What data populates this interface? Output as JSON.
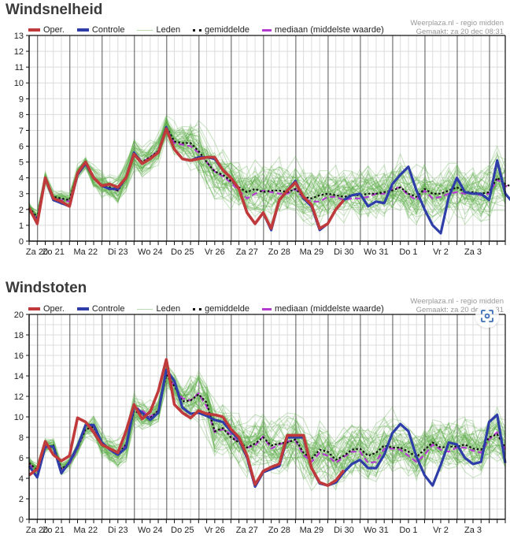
{
  "legend": {
    "oper": "Oper.",
    "controle": "Controle",
    "leden": "Leden",
    "gemiddelde": "gemiddelde",
    "mediaan": "mediaan (middelste waarde)"
  },
  "credit": {
    "source": "Weerplaza.nl - regio midden",
    "made": "Gemaakt: za 20 dec 08:31"
  },
  "colors": {
    "oper": "#c0393b",
    "controle": "#2e3da8",
    "leden": "#5fb04a",
    "gemiddelde": "#111111",
    "mediaan": "#b43ad0"
  },
  "chart_data": [
    {
      "type": "line",
      "title": "Windsnelheid",
      "xlabel": "",
      "ylabel": "",
      "ylim": [
        0,
        13
      ],
      "yticks": [
        0,
        1,
        2,
        3,
        4,
        5,
        6,
        7,
        8,
        9,
        10,
        11,
        12,
        13
      ],
      "x_step": "6 uur",
      "day_labels": [
        "Za 20",
        "Zo 21",
        "Ma 22",
        "Di 23",
        "Wo 24",
        "Do 25",
        "Vr 26",
        "Za 27",
        "Zo 28",
        "Ma 29",
        "Di 30",
        "Wo 31",
        "Do 1",
        "Vr 2",
        "Za 3"
      ],
      "grid": true,
      "legend_position": "top",
      "series": [
        {
          "name": "Oper.",
          "key": "oper",
          "values": [
            2.1,
            1.1,
            4.0,
            2.7,
            2.5,
            2.2,
            4.3,
            5.0,
            4.0,
            3.5,
            3.6,
            3.4,
            4.0,
            5.5,
            4.9,
            5.2,
            5.6,
            7.1,
            5.8,
            5.2,
            5.1,
            5.2,
            5.3,
            5.3,
            4.5,
            4.0,
            3.3,
            1.8,
            1.1,
            1.8,
            0.8,
            2.6,
            3.2,
            3.7,
            2.8,
            2.3,
            0.8,
            1.1,
            2.0,
            2.6
          ]
        },
        {
          "name": "Controle",
          "key": "controle",
          "values": [
            2.1,
            1.2,
            4.0,
            2.6,
            2.4,
            2.2,
            4.2,
            4.9,
            4.0,
            3.5,
            3.3,
            3.3,
            4.0,
            5.6,
            4.9,
            5.2,
            5.6,
            7.2,
            5.8,
            5.2,
            5.1,
            5.3,
            5.3,
            5.2,
            4.5,
            4.0,
            3.3,
            1.8,
            1.1,
            1.8,
            0.7,
            2.6,
            3.2,
            3.8,
            2.7,
            2.2,
            0.7,
            1.1,
            2.0,
            2.6,
            2.9,
            3.0,
            2.2,
            2.5,
            2.4,
            3.6,
            4.2,
            4.7,
            3.2,
            2.0,
            1.0,
            0.5,
            2.8,
            4.0,
            3.1,
            3.0,
            3.0,
            2.6,
            5.1,
            3.0,
            2.4
          ]
        },
        {
          "name": "gemiddelde",
          "key": "gemiddelde",
          "values": [
            2.1,
            1.5,
            4.0,
            2.8,
            2.7,
            2.6,
            4.3,
            4.9,
            4.0,
            3.5,
            3.4,
            3.2,
            4.0,
            5.5,
            5.0,
            5.3,
            5.7,
            7.2,
            6.3,
            6.2,
            6.2,
            5.7,
            5.0,
            4.4,
            4.2,
            3.8,
            3.4,
            3.1,
            3.3,
            3.1,
            3.2,
            3.2,
            3.1,
            3.3,
            2.8,
            2.7,
            2.9,
            3.0,
            2.9,
            2.8,
            2.9,
            2.9,
            3.0,
            3.0,
            3.1,
            3.2,
            3.4,
            3.0,
            2.8,
            3.3,
            3.0,
            3.0,
            3.2,
            3.4,
            3.1,
            3.1,
            3.0,
            3.1,
            4.0,
            3.6,
            3.4
          ]
        },
        {
          "name": "mediaan (middelste waarde)",
          "key": "mediaan",
          "values": [
            2.0,
            1.4,
            3.9,
            2.7,
            2.6,
            2.5,
            4.3,
            4.9,
            4.0,
            3.5,
            3.3,
            3.2,
            4.0,
            5.6,
            5.0,
            5.3,
            5.7,
            7.1,
            6.2,
            6.1,
            6.0,
            5.6,
            5.0,
            4.4,
            4.1,
            3.7,
            3.2,
            2.7,
            3.0,
            3.2,
            3.1,
            3.0,
            3.0,
            3.3,
            2.7,
            2.5,
            2.5,
            2.8,
            2.8,
            2.6,
            2.7,
            2.7,
            2.8,
            3.0,
            3.0,
            3.3,
            3.4,
            2.9,
            2.6,
            3.2,
            2.7,
            2.8,
            3.0,
            3.1,
            3.0,
            3.0,
            2.9,
            3.0,
            3.9,
            3.5,
            3.3
          ]
        }
      ]
    },
    {
      "type": "line",
      "title": "Windstoten",
      "xlabel": "",
      "ylabel": "",
      "ylim": [
        0,
        20
      ],
      "yticks": [
        0,
        2,
        4,
        6,
        8,
        10,
        12,
        14,
        16,
        18,
        20
      ],
      "x_step": "6 uur",
      "day_labels": [
        "Za 20",
        "Zo 21",
        "Ma 22",
        "Di 23",
        "Wo 24",
        "Do 25",
        "Vr 26",
        "Za 27",
        "Zo 28",
        "Ma 29",
        "Di 30",
        "Wo 31",
        "Do 1",
        "Vr 2",
        "Za 3"
      ],
      "grid": true,
      "legend_position": "top",
      "series": [
        {
          "name": "Oper.",
          "key": "oper",
          "values": [
            4.3,
            4.9,
            7.6,
            6.3,
            5.7,
            6.2,
            9.9,
            9.5,
            8.5,
            7.3,
            6.9,
            6.5,
            8.6,
            11.2,
            9.8,
            10.5,
            12.5,
            15.6,
            11.2,
            10.4,
            9.9,
            10.6,
            10.3,
            10.2,
            10.0,
            8.8,
            8.0,
            6.2,
            3.4,
            4.7,
            5.1,
            5.4,
            8.2,
            8.2,
            8.2,
            5.0,
            3.6,
            3.3,
            3.8,
            4.8
          ]
        },
        {
          "name": "Controle",
          "key": "controle",
          "values": [
            5.2,
            4.1,
            7.1,
            7.1,
            4.5,
            5.6,
            7.1,
            9.2,
            9.2,
            7.5,
            6.8,
            6.3,
            7.0,
            11.0,
            10.4,
            9.7,
            10.4,
            14.6,
            13.5,
            10.9,
            10.3,
            10.4,
            10.1,
            9.7,
            9.5,
            8.6,
            7.8,
            6.0,
            3.2,
            4.6,
            4.9,
            5.2,
            8.0,
            8.0,
            8.0,
            5.0,
            3.5,
            3.3,
            3.6,
            4.6,
            5.4,
            5.8,
            5.0,
            5.0,
            6.3,
            8.4,
            9.3,
            8.6,
            6.1,
            4.3,
            3.3,
            5.3,
            7.5,
            7.3,
            6.0,
            5.4,
            5.6,
            9.5,
            10.2,
            5.5
          ]
        },
        {
          "name": "gemiddelde",
          "key": "gemiddelde",
          "values": [
            5.5,
            4.8,
            7.1,
            7.2,
            4.9,
            5.5,
            7.0,
            8.8,
            9.0,
            7.4,
            6.8,
            6.3,
            7.3,
            10.6,
            10.2,
            9.9,
            10.6,
            14.1,
            13.0,
            11.5,
            11.6,
            12.2,
            11.4,
            8.6,
            8.9,
            8.0,
            7.5,
            7.0,
            7.4,
            8.0,
            7.2,
            7.4,
            7.5,
            7.8,
            6.5,
            5.9,
            6.8,
            6.6,
            5.8,
            6.2,
            6.8,
            6.9,
            6.2,
            6.5,
            7.2,
            7.0,
            7.0,
            6.6,
            6.1,
            6.8,
            7.5,
            7.0,
            7.1,
            7.1,
            7.3,
            6.9,
            6.8,
            8.0,
            8.3,
            7.0
          ]
        },
        {
          "name": "mediaan (middelste waarde)",
          "key": "mediaan",
          "values": [
            5.4,
            4.7,
            7.0,
            7.1,
            4.8,
            5.4,
            6.9,
            8.9,
            9.0,
            7.3,
            6.8,
            6.3,
            7.3,
            11.0,
            10.6,
            10.0,
            10.6,
            14.3,
            13.0,
            11.8,
            11.6,
            12.3,
            11.0,
            8.5,
            8.8,
            8.3,
            7.4,
            7.0,
            7.2,
            8.1,
            6.9,
            7.3,
            7.6,
            7.7,
            6.3,
            5.6,
            6.5,
            6.2,
            5.5,
            6.1,
            6.6,
            6.6,
            5.5,
            5.6,
            6.9,
            6.9,
            6.8,
            6.2,
            5.6,
            6.3,
            7.3,
            6.8,
            6.6,
            7.0,
            7.0,
            6.7,
            6.5,
            7.8,
            8.5,
            6.8
          ]
        }
      ]
    }
  ]
}
